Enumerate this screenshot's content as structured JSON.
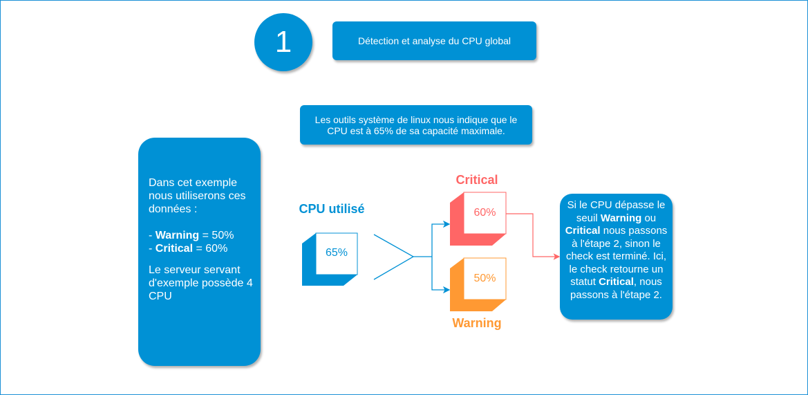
{
  "step": {
    "number": "1",
    "title": "Détection et analyse du CPU global"
  },
  "info_box": {
    "text": "Les outils système de linux nous indique que le CPU est à 65% de sa capacité maximale."
  },
  "left_box": {
    "intro": "Dans cet exemple nous utiliserons ces données :",
    "warning_label": "Warning",
    "warning_value": " = 50%",
    "critical_label": "Critical",
    "critical_value": " = 60%",
    "dash": "- ",
    "server": "Le serveur servant d'exemple possède 4 CPU"
  },
  "cpu": {
    "label": "CPU utilisé",
    "value": "65%"
  },
  "critical": {
    "label": "Critical",
    "value": "60%"
  },
  "warning": {
    "label": "Warning",
    "value": "50%"
  },
  "right_box": {
    "parts": [
      {
        "t": "Si le CPU dépasse le seuil ",
        "b": false
      },
      {
        "t": "Warning",
        "b": true
      },
      {
        "t": " ou ",
        "b": false
      },
      {
        "t": "Critical",
        "b": true
      },
      {
        "t": " nous passons à l'étape 2, sinon le check est terminé. Ici, le check retourne un statut ",
        "b": false
      },
      {
        "t": "Critical",
        "b": true
      },
      {
        "t": ", nous passons à l'étape 2.",
        "b": false
      }
    ]
  },
  "colors": {
    "blue": "#0091d5",
    "critical": "#ff6666",
    "warning": "#ff9933"
  }
}
